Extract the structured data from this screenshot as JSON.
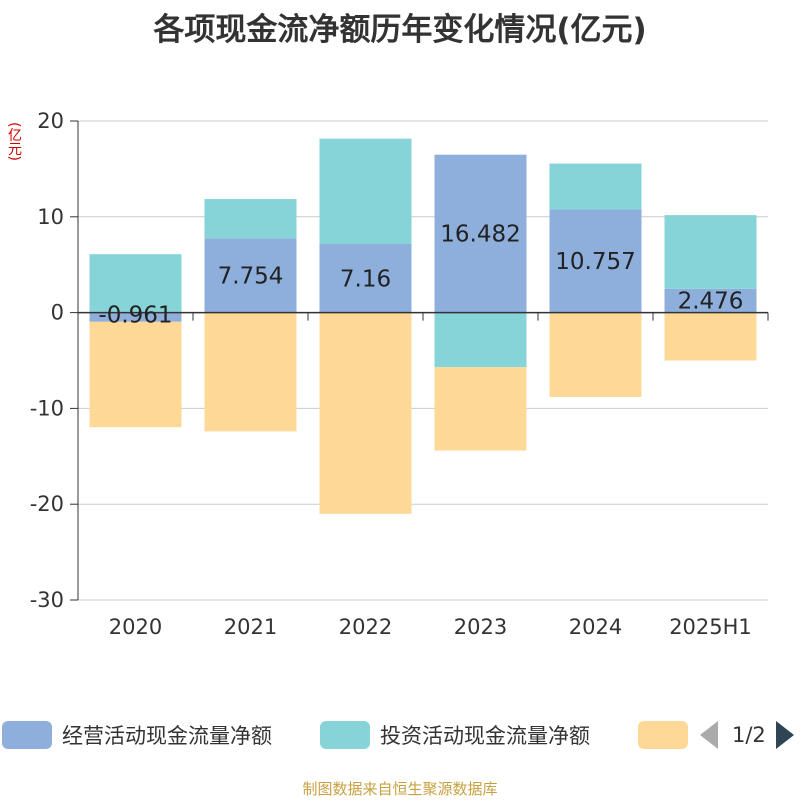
{
  "title": "各项现金流净额历年变化情况(亿元)",
  "unit_label": "(亿元)",
  "legend": {
    "items": [
      {
        "label": "经营活动现金流量净额",
        "color": "#8eaedc"
      },
      {
        "label": "投资活动现金流量净额",
        "color": "#86d4d8"
      },
      {
        "label": "",
        "color": "#fed897"
      }
    ],
    "page": "1/2"
  },
  "source": "制图数据来自恒生聚源数据库",
  "chart_data": {
    "type": "bar",
    "stacked": true,
    "categories": [
      "2020",
      "2021",
      "2022",
      "2023",
      "2024",
      "2025H1"
    ],
    "series": [
      {
        "name": "经营活动现金流量净额",
        "values": [
          -0.961,
          7.754,
          7.16,
          16.482,
          10.757,
          2.476
        ],
        "color": "#8eaedc",
        "labels": [
          "-0.961",
          "7.754",
          "7.16",
          "16.482",
          "10.757",
          "2.476"
        ]
      },
      {
        "name": "投资活动现金流量净额",
        "values": [
          6.1,
          4.1,
          11.0,
          -5.7,
          4.8,
          7.7
        ],
        "color": "#86d4d8"
      },
      {
        "values": [
          -11.0,
          -12.4,
          -21.0,
          -8.7,
          -8.8,
          -5.0
        ],
        "color": "#fed897"
      }
    ],
    "yticks": [
      "20",
      "10",
      "0",
      "-10",
      "-20",
      "-30"
    ],
    "ylim": [
      -30,
      20
    ],
    "grid": true
  }
}
